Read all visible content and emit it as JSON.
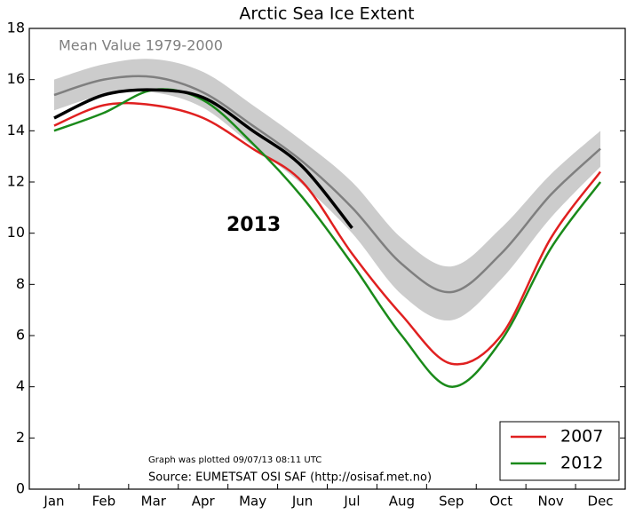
{
  "chart_data": {
    "type": "line",
    "title": "Arctic Sea Ice Extent",
    "categories": [
      "Jan",
      "Feb",
      "Mar",
      "Apr",
      "May",
      "Jun",
      "Jul",
      "Aug",
      "Sep",
      "Oct",
      "Nov",
      "Dec"
    ],
    "band": {
      "color": "#cccccc",
      "upper": [
        16.0,
        16.6,
        16.8,
        16.3,
        15.0,
        13.6,
        12.0,
        9.8,
        8.7,
        10.2,
        12.3,
        14.0
      ],
      "lower": [
        14.8,
        15.4,
        15.5,
        14.9,
        13.4,
        11.9,
        10.0,
        7.6,
        6.6,
        8.2,
        10.6,
        12.6
      ]
    },
    "series": [
      {
        "name": "Mean Value 1979-2000",
        "color": "#7f7f7f",
        "in_legend": false,
        "values": [
          15.4,
          16.0,
          16.1,
          15.5,
          14.2,
          12.8,
          11.0,
          8.8,
          7.7,
          9.2,
          11.5,
          13.3
        ]
      },
      {
        "name": "2007",
        "color": "#e02020",
        "in_legend": true,
        "values": [
          14.2,
          15.0,
          15.0,
          14.5,
          13.3,
          12.0,
          9.2,
          6.8,
          4.9,
          6.0,
          9.8,
          12.4
        ]
      },
      {
        "name": "2012",
        "color": "#1a8a1a",
        "in_legend": true,
        "values": [
          14.0,
          14.7,
          15.6,
          15.2,
          13.5,
          11.4,
          8.8,
          6.0,
          4.0,
          5.8,
          9.4,
          12.0
        ]
      },
      {
        "name": "2013",
        "color": "#000000",
        "in_legend": false,
        "values": [
          14.5,
          15.4,
          15.6,
          15.3,
          14.0,
          12.6,
          10.2,
          null,
          null,
          null,
          null,
          null
        ]
      }
    ],
    "annotations": [
      "Graph was plotted 09/07/13 08:11 UTC",
      "Source: EUMETSAT OSI SAF (http://osisaf.met.no)"
    ],
    "ylim": [
      0,
      18
    ],
    "yticks": [
      0,
      2,
      4,
      6,
      8,
      10,
      12,
      14,
      16,
      18
    ],
    "legend": "lower right"
  }
}
